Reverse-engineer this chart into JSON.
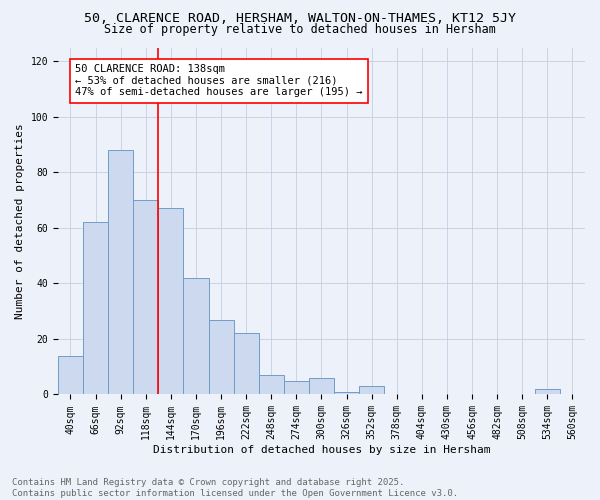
{
  "title1": "50, CLARENCE ROAD, HERSHAM, WALTON-ON-THAMES, KT12 5JY",
  "title2": "Size of property relative to detached houses in Hersham",
  "xlabel": "Distribution of detached houses by size in Hersham",
  "ylabel": "Number of detached properties",
  "bar_labels": [
    "40sqm",
    "66sqm",
    "92sqm",
    "118sqm",
    "144sqm",
    "170sqm",
    "196sqm",
    "222sqm",
    "248sqm",
    "274sqm",
    "300sqm",
    "326sqm",
    "352sqm",
    "378sqm",
    "404sqm",
    "430sqm",
    "456sqm",
    "482sqm",
    "508sqm",
    "534sqm",
    "560sqm"
  ],
  "bar_values": [
    14,
    62,
    88,
    70,
    67,
    42,
    27,
    22,
    7,
    5,
    6,
    1,
    3,
    0,
    0,
    0,
    0,
    0,
    0,
    2,
    0
  ],
  "bar_color": "#ccd9ee",
  "bar_edge_color": "#6e9dc8",
  "vline_color": "red",
  "vline_x_index": 3.5,
  "annotation_title": "50 CLARENCE ROAD: 138sqm",
  "annotation_line1": "← 53% of detached houses are smaller (216)",
  "annotation_line2": "47% of semi-detached houses are larger (195) →",
  "annotation_box_color": "white",
  "annotation_box_edge": "red",
  "ylim": [
    0,
    125
  ],
  "yticks": [
    0,
    20,
    40,
    60,
    80,
    100,
    120
  ],
  "footer1": "Contains HM Land Registry data © Crown copyright and database right 2025.",
  "footer2": "Contains public sector information licensed under the Open Government Licence v3.0.",
  "bg_color": "#edf1f9",
  "grid_color": "#c5cfe0",
  "title_fontsize": 9.5,
  "subtitle_fontsize": 8.5,
  "axis_label_fontsize": 8,
  "tick_fontsize": 7,
  "annotation_fontsize": 7.5,
  "footer_fontsize": 6.5
}
